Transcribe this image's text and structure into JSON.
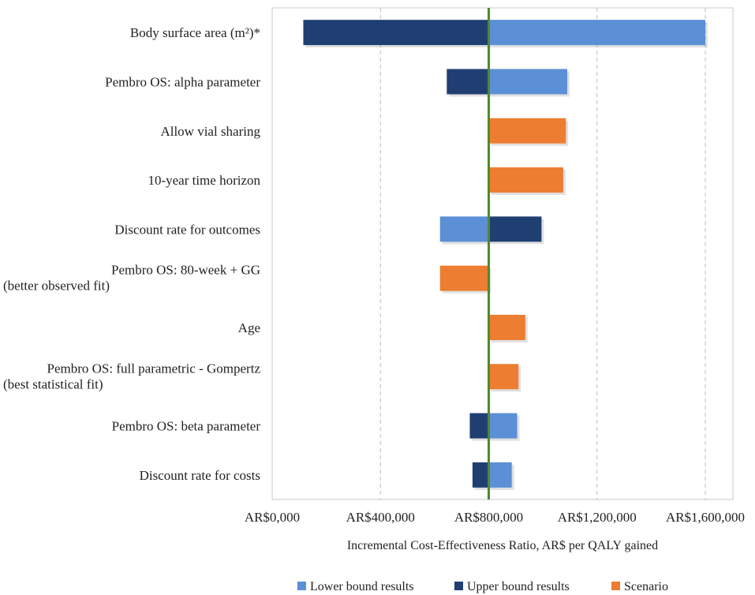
{
  "chart_data": {
    "type": "bar",
    "orientation": "horizontal",
    "subtype": "tornado",
    "base_value": 800000,
    "xlabel": "Incremental Cost-Effectiveness Ratio, AR$ per QALY  gained",
    "xlim": [
      0,
      1700000
    ],
    "x_ticks": [
      0,
      400000,
      800000,
      1200000,
      1600000
    ],
    "x_tick_labels": [
      "AR$0,000",
      "AR$400,000",
      "AR$800,000",
      "AR$1,200,000",
      "AR$1,600,000"
    ],
    "grid": "vertical-dashed",
    "legend_position": "bottom",
    "legend": [
      {
        "name": "Lower bound results",
        "color": "#5b8fd6"
      },
      {
        "name": "Upper bound results",
        "color": "#1f3f73"
      },
      {
        "name": "Scenario",
        "color": "#ed7d31"
      }
    ],
    "reference_line": {
      "value": 800000,
      "color": "#4e8a2c"
    },
    "categories": [
      {
        "label": [
          "Body surface area (m²)*"
        ],
        "bars": [
          {
            "series": "Upper bound results",
            "from": 800000,
            "to": 115000
          },
          {
            "series": "Lower bound results",
            "from": 800000,
            "to": 1600000
          }
        ]
      },
      {
        "label": [
          "Pembro OS: alpha parameter"
        ],
        "bars": [
          {
            "series": "Upper bound results",
            "from": 800000,
            "to": 645000
          },
          {
            "series": "Lower bound results",
            "from": 800000,
            "to": 1090000
          }
        ]
      },
      {
        "label": [
          "Allow vial sharing"
        ],
        "bars": [
          {
            "series": "Scenario",
            "from": 800000,
            "to": 1085000
          }
        ]
      },
      {
        "label": [
          "10-year time horizon"
        ],
        "bars": [
          {
            "series": "Scenario",
            "from": 800000,
            "to": 1075000
          }
        ]
      },
      {
        "label": [
          "Discount rate for outcomes"
        ],
        "bars": [
          {
            "series": "Lower bound results",
            "from": 800000,
            "to": 620000
          },
          {
            "series": "Upper bound results",
            "from": 800000,
            "to": 995000
          }
        ]
      },
      {
        "label": [
          "Pembro OS: 80-week + GG",
          "(better observed fit)"
        ],
        "bars": [
          {
            "series": "Scenario",
            "from": 800000,
            "to": 620000
          }
        ]
      },
      {
        "label": [
          "Age"
        ],
        "bars": [
          {
            "series": "Scenario",
            "from": 800000,
            "to": 935000
          }
        ]
      },
      {
        "label": [
          "Pembro OS: full parametric - Gompertz",
          "(best statistical fit)"
        ],
        "bars": [
          {
            "series": "Scenario",
            "from": 800000,
            "to": 910000
          }
        ]
      },
      {
        "label": [
          "Pembro OS: beta parameter"
        ],
        "bars": [
          {
            "series": "Upper bound results",
            "from": 800000,
            "to": 730000
          },
          {
            "series": "Lower bound results",
            "from": 800000,
            "to": 905000
          }
        ]
      },
      {
        "label": [
          "Discount rate for costs"
        ],
        "bars": [
          {
            "series": "Upper bound results",
            "from": 800000,
            "to": 740000
          },
          {
            "series": "Lower bound results",
            "from": 800000,
            "to": 885000
          }
        ]
      }
    ]
  }
}
